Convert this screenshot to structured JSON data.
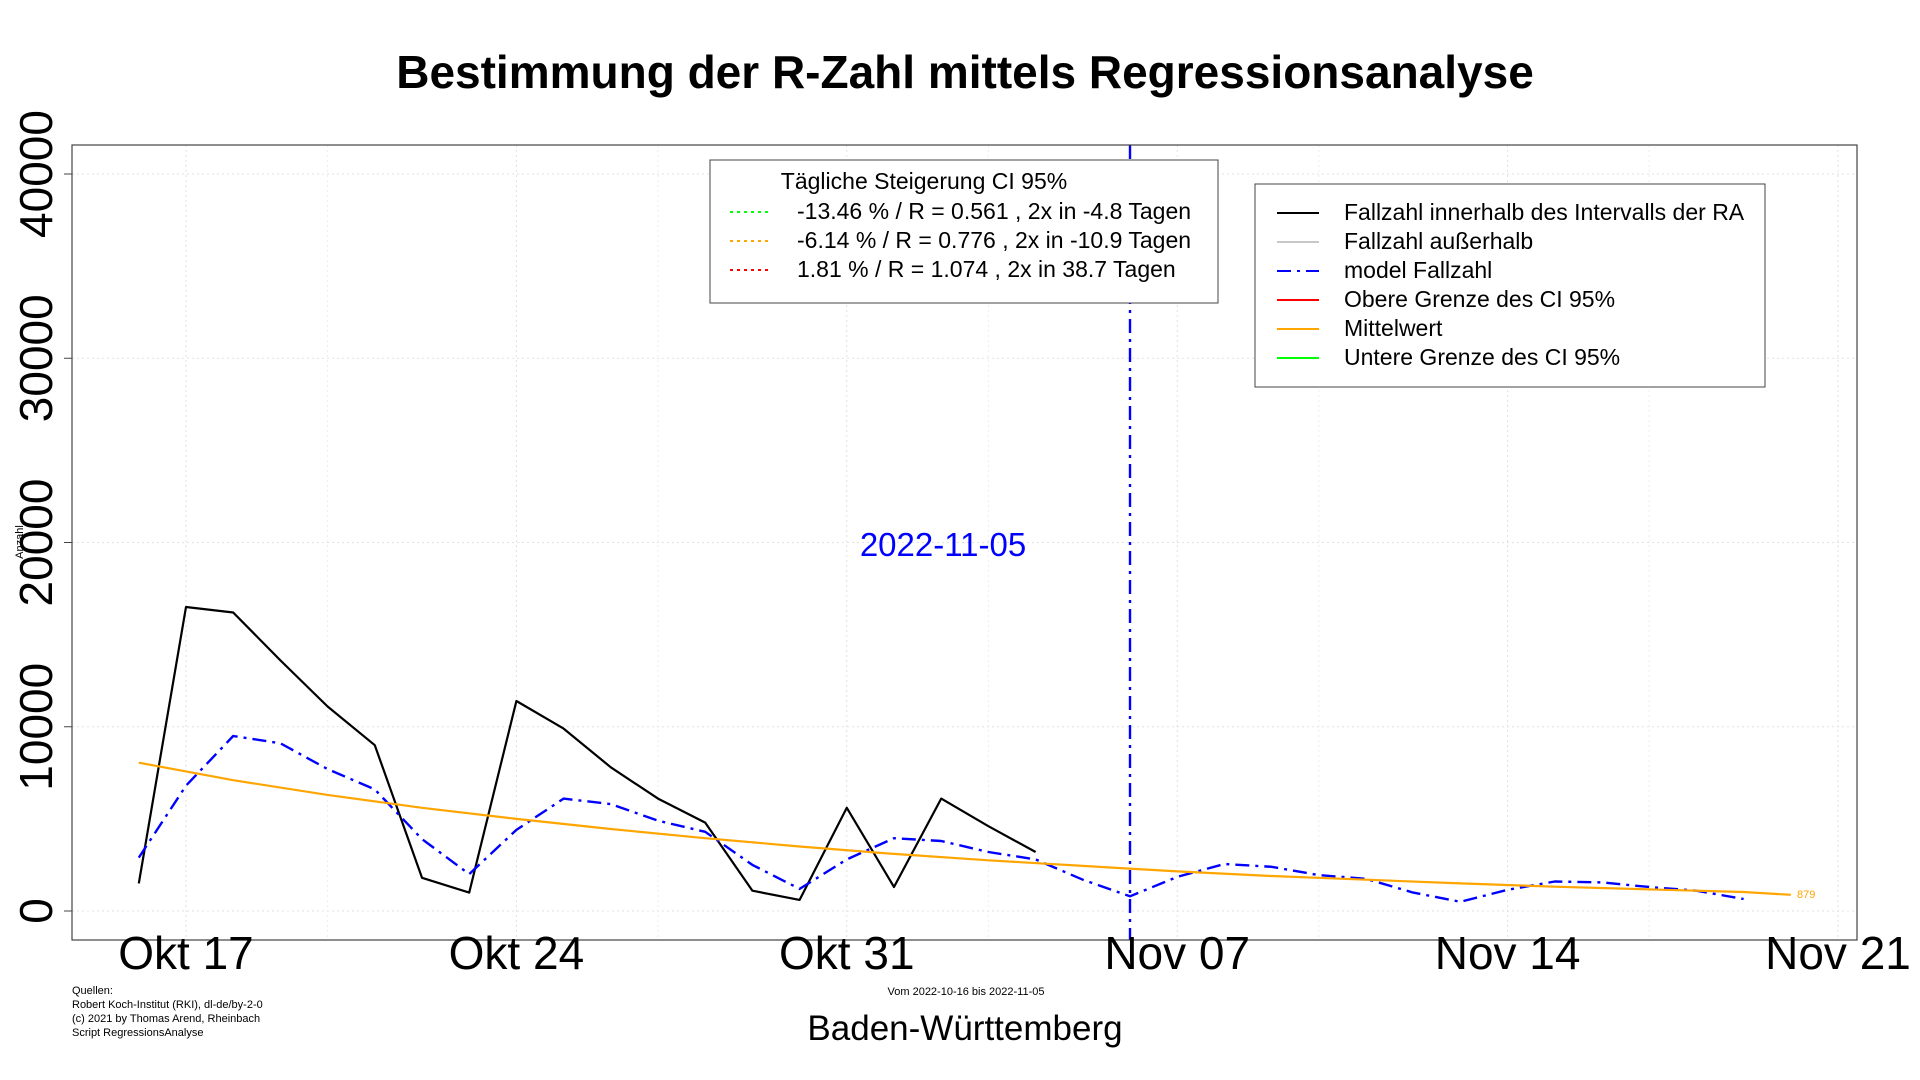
{
  "chart_data": {
    "type": "line",
    "title": "Bestimmung der R-Zahl mittels Regressionsanalyse",
    "ylabel": "Anzahl",
    "xlabel": "Baden-Württemberg",
    "subtitle": "Vom 2022-10-16 bis 2022-11-05",
    "source_lines": [
      "Quellen:",
      "Robert Koch-Institut (RKI), dl-de/by-2-0",
      "(c) 2021 by Thomas Arend, Rheinbach",
      "Script RegressionsAnalyse"
    ],
    "ylim": [
      0,
      40000
    ],
    "y_ticks": [
      0,
      10000,
      20000,
      30000,
      40000
    ],
    "x_ticks": [
      "Okt 17",
      "Okt 24",
      "Okt 31",
      "Nov 07",
      "Nov 14",
      "Nov 21"
    ],
    "x_tick_dates": [
      "2022-10-17",
      "2022-10-24",
      "2022-10-31",
      "2022-11-07",
      "2022-11-14",
      "2022-11-21"
    ],
    "grid": true,
    "vline": {
      "date": "2022-11-06",
      "label": "2022-11-05",
      "color": "#0000ff"
    },
    "series": [
      {
        "name": "Fallzahl innerhalb des Intervalls der RA",
        "color": "#000000",
        "style": "solid",
        "x": [
          "2022-10-16",
          "2022-10-17",
          "2022-10-18",
          "2022-10-19",
          "2022-10-20",
          "2022-10-21",
          "2022-10-22",
          "2022-10-23",
          "2022-10-24",
          "2022-10-25",
          "2022-10-26",
          "2022-10-27",
          "2022-10-28",
          "2022-10-29",
          "2022-10-30",
          "2022-10-31",
          "2022-11-01",
          "2022-11-02",
          "2022-11-03",
          "2022-11-04",
          "2022-11-05"
        ],
        "values": [
          1500,
          16500,
          16200,
          13600,
          11100,
          9000,
          1800,
          1000,
          11400,
          9900,
          7800,
          6100,
          4800,
          1100,
          600,
          5600,
          1300,
          6100,
          4600,
          3200,
          null
        ]
      },
      {
        "name": "model Fallzahl",
        "color": "#0000ff",
        "style": "dashdot",
        "x": [
          "2022-10-16",
          "2022-10-17",
          "2022-10-18",
          "2022-10-19",
          "2022-10-20",
          "2022-10-21",
          "2022-10-22",
          "2022-10-23",
          "2022-10-24",
          "2022-10-25",
          "2022-10-26",
          "2022-10-27",
          "2022-10-28",
          "2022-10-29",
          "2022-10-30",
          "2022-10-31",
          "2022-11-01",
          "2022-11-02",
          "2022-11-03",
          "2022-11-04",
          "2022-11-05",
          "2022-11-06",
          "2022-11-07",
          "2022-11-08",
          "2022-11-09",
          "2022-11-10",
          "2022-11-11",
          "2022-11-12",
          "2022-11-13",
          "2022-11-14",
          "2022-11-15",
          "2022-11-16",
          "2022-11-17",
          "2022-11-18",
          "2022-11-19"
        ],
        "values": [
          2900,
          6800,
          9500,
          9100,
          7700,
          6600,
          3900,
          2000,
          4400,
          6100,
          5800,
          4900,
          4300,
          2500,
          1200,
          2800,
          3950,
          3800,
          3200,
          2800,
          1700,
          800,
          1850,
          2550,
          2400,
          1950,
          1750,
          1000,
          500,
          1150,
          1600,
          1550,
          1300,
          1100,
          650
        ]
      },
      {
        "name": "Mittelwert",
        "color": "#ffa500",
        "style": "solid",
        "x": [
          "2022-10-16",
          "2022-10-18",
          "2022-10-20",
          "2022-10-22",
          "2022-10-24",
          "2022-10-26",
          "2022-10-28",
          "2022-10-30",
          "2022-11-01",
          "2022-11-03",
          "2022-11-05",
          "2022-11-07",
          "2022-11-09",
          "2022-11-11",
          "2022-11-13",
          "2022-11-15",
          "2022-11-17",
          "2022-11-19",
          "2022-11-20"
        ],
        "values": [
          8050,
          7100,
          6300,
          5600,
          5000,
          4450,
          3950,
          3500,
          3100,
          2750,
          2450,
          2150,
          1900,
          1700,
          1500,
          1320,
          1170,
          1030,
          879
        ]
      }
    ],
    "end_label": {
      "text": "879",
      "color": "#ffa500"
    },
    "legend_right": {
      "position": "top-right",
      "items": [
        {
          "label": "Fallzahl innerhalb des Intervalls der RA",
          "color": "#000000",
          "style": "solid"
        },
        {
          "label": "Fallzahl außerhalb",
          "color": "#c8c8c8",
          "style": "solid"
        },
        {
          "label": "model Fallzahl",
          "color": "#0000ff",
          "style": "dashdot"
        },
        {
          "label": "Obere Grenze des CI 95%",
          "color": "#ff0000",
          "style": "solid"
        },
        {
          "label": "Mittelwert",
          "color": "#ffa500",
          "style": "solid"
        },
        {
          "label": "Untere Grenze des CI 95%",
          "color": "#00ff00",
          "style": "solid"
        }
      ]
    },
    "legend_ci": {
      "position": "top-center",
      "title": "Tägliche Steigerung CI  95%",
      "items": [
        {
          "label": "-13.46 % / R = 0.561 , 2x in -4.8 Tagen",
          "color": "#00ff00",
          "style": "dotted"
        },
        {
          "label": "-6.14 % / R = 0.776 , 2x in -10.9 Tagen",
          "color": "#ffa500",
          "style": "dotted"
        },
        {
          "label": "1.81 % / R = 1.074 , 2x in 38.7 Tagen",
          "color": "#ff0000",
          "style": "dotted"
        }
      ]
    }
  }
}
